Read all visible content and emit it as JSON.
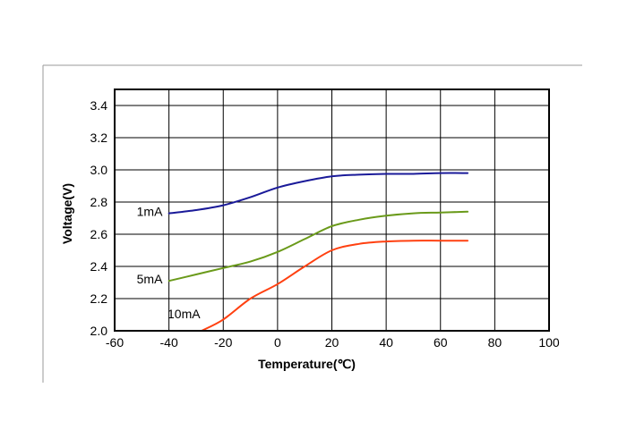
{
  "chart_data": {
    "type": "line",
    "title": "",
    "xlabel": "Temperature(℃)",
    "ylabel": "Voltage(V)",
    "xlim": [
      -60,
      100
    ],
    "ylim": [
      2.0,
      3.5
    ],
    "xticks": [
      -60,
      -40,
      -20,
      0,
      20,
      40,
      60,
      80,
      100
    ],
    "xtick_labels": [
      "-60",
      "-40",
      "-20",
      "0",
      "20",
      "40",
      "60",
      "80",
      "100"
    ],
    "yticks": [
      2.0,
      2.2,
      2.4,
      2.6,
      2.8,
      3.0,
      3.2,
      3.4
    ],
    "ytick_labels": [
      "2.0",
      "2.2",
      "2.4",
      "2.6",
      "2.8",
      "3.0",
      "3.2",
      "3.4"
    ],
    "grid": true,
    "legend": "inline labels at left end of each curve",
    "series": [
      {
        "name": "1mA",
        "color": "#1a1a99",
        "x": [
          -40,
          -30,
          -20,
          -10,
          0,
          10,
          20,
          30,
          40,
          50,
          60,
          70
        ],
        "y": [
          2.73,
          2.75,
          2.78,
          2.83,
          2.89,
          2.93,
          2.96,
          2.97,
          2.975,
          2.975,
          2.98,
          2.98
        ]
      },
      {
        "name": "5mA",
        "color": "#6a9a1a",
        "x": [
          -40,
          -30,
          -20,
          -10,
          0,
          10,
          20,
          30,
          40,
          50,
          60,
          70
        ],
        "y": [
          2.31,
          2.35,
          2.39,
          2.43,
          2.49,
          2.57,
          2.65,
          2.69,
          2.715,
          2.73,
          2.735,
          2.74
        ]
      },
      {
        "name": "10mA",
        "color": "#ff4010",
        "x": [
          -28,
          -20,
          -10,
          0,
          10,
          20,
          30,
          40,
          50,
          60,
          70
        ],
        "y": [
          2.0,
          2.07,
          2.2,
          2.29,
          2.4,
          2.5,
          2.54,
          2.555,
          2.56,
          2.56,
          2.56
        ]
      }
    ]
  }
}
